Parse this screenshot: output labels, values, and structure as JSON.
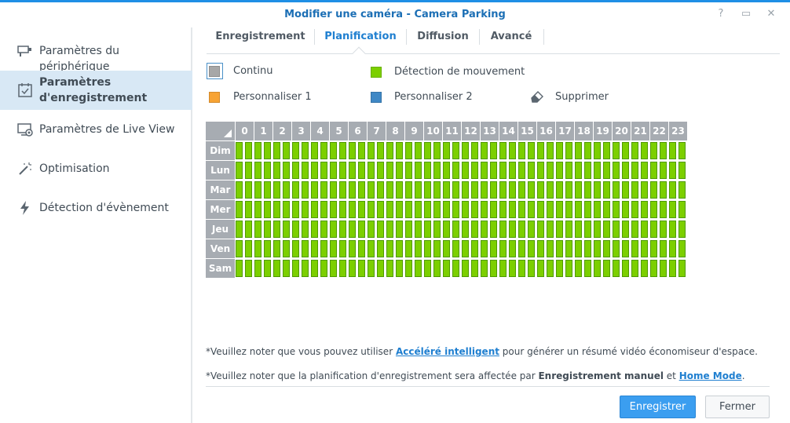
{
  "window": {
    "title": "Modifier une caméra - Camera Parking",
    "help_glyph": "?",
    "maximize_glyph": "▭",
    "close_glyph": "✕"
  },
  "sidebar": {
    "items": [
      {
        "label": "Paramètres du périphérique",
        "icon": "camera-icon",
        "active": false
      },
      {
        "label": "Paramètres d'enregistrement",
        "icon": "calendar-check-icon",
        "active": true
      },
      {
        "label": "Paramètres de Live View",
        "icon": "monitor-icon",
        "active": false
      },
      {
        "label": "Optimisation",
        "icon": "magic-wand-icon",
        "active": false
      },
      {
        "label": "Détection d'évènement",
        "icon": "lightning-icon",
        "active": false
      }
    ]
  },
  "tabs": [
    {
      "label": "Enregistrement",
      "active": false
    },
    {
      "label": "Planification",
      "active": true
    },
    {
      "label": "Diffusion",
      "active": false
    },
    {
      "label": "Avancé",
      "active": false
    }
  ],
  "legend": {
    "continu": {
      "label": "Continu",
      "color": "#a7a7a7"
    },
    "motion": {
      "label": "Détection de mouvement",
      "color": "#7ccf00"
    },
    "custom1": {
      "label": "Personnaliser 1",
      "color": "#f7a334"
    },
    "custom2": {
      "label": "Personnaliser 2",
      "color": "#3f88c5"
    },
    "delete": {
      "label": "Supprimer",
      "icon": "eraser-icon"
    }
  },
  "schedule": {
    "hours": [
      "0",
      "1",
      "2",
      "3",
      "4",
      "5",
      "6",
      "7",
      "8",
      "9",
      "10",
      "11",
      "12",
      "13",
      "14",
      "15",
      "16",
      "17",
      "18",
      "19",
      "20",
      "21",
      "22",
      "23"
    ],
    "days": [
      "Dim",
      "Lun",
      "Mar",
      "Mer",
      "Jeu",
      "Ven",
      "Sam"
    ],
    "fill_mode": "Détection de mouvement",
    "fill_color": "#7ccf00"
  },
  "notes": {
    "note1_prefix": "*Veuillez noter que vous pouvez utiliser ",
    "note1_link": "Accéléré intelligent",
    "note1_suffix": " pour générer un résumé vidéo économiseur d'espace.",
    "note2_prefix": "*Veuillez noter que la planification d'enregistrement sera affectée par ",
    "note2_bold": "Enregistrement manuel",
    "note2_mid": " et ",
    "note2_link": "Home Mode",
    "note2_suffix": "."
  },
  "buttons": {
    "save": "Enregistrer",
    "close": "Fermer"
  }
}
